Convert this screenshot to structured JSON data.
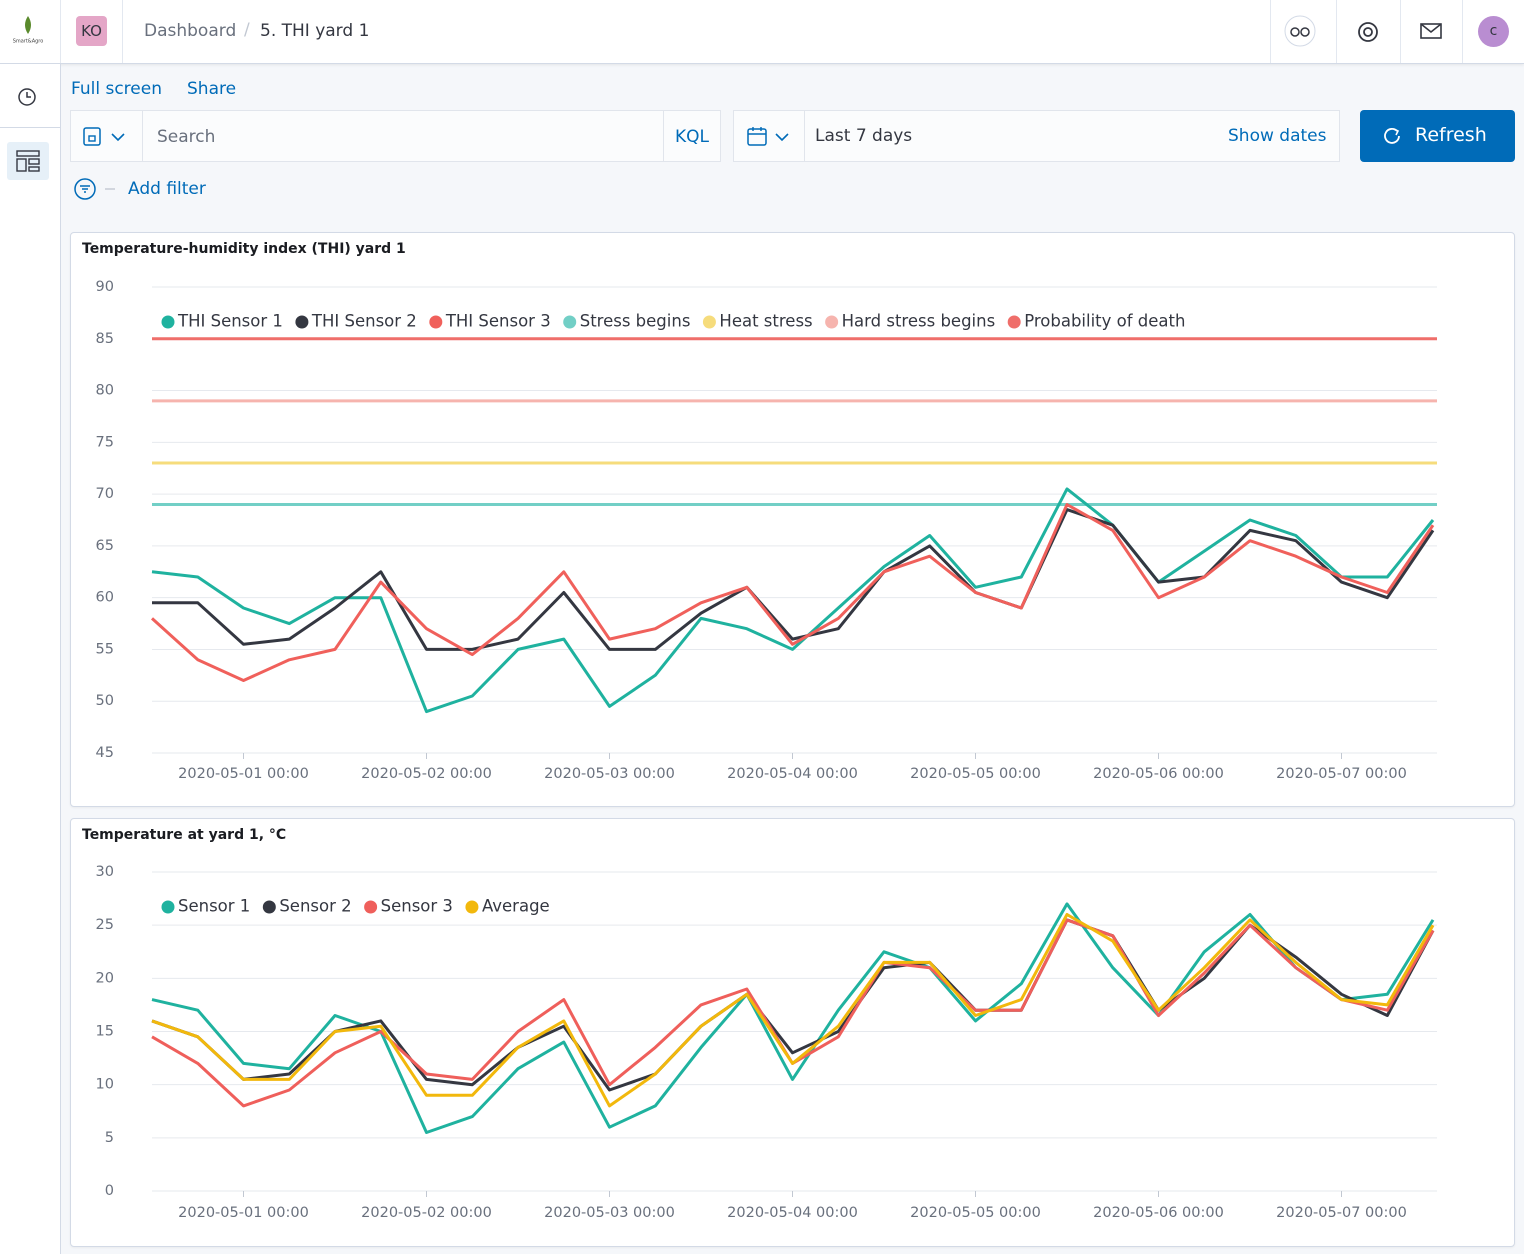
{
  "header": {
    "logo": "Smart&Agro",
    "space": "KO",
    "breadcrumbs": [
      "Dashboard",
      "5. THI yard 1"
    ],
    "user": "c"
  },
  "toolbar": {
    "links": [
      "Full screen",
      "Share"
    ],
    "search": "Search",
    "language": "KQL",
    "time": "Last 7 days",
    "show_dates": "Show dates",
    "refresh": "Refresh",
    "add_filter": "Add filter"
  },
  "chart_data": [
    {
      "type": "line",
      "title": "Temperature-humidity index (THI) yard 1",
      "x": [
        "2020-04-30 12:00",
        "2020-04-30 18:00",
        "2020-05-01 00:00",
        "2020-05-01 06:00",
        "2020-05-01 12:00",
        "2020-05-01 18:00",
        "2020-05-02 00:00",
        "2020-05-02 06:00",
        "2020-05-02 12:00",
        "2020-05-02 18:00",
        "2020-05-03 00:00",
        "2020-05-03 06:00",
        "2020-05-03 12:00",
        "2020-05-03 18:00",
        "2020-05-04 00:00",
        "2020-05-04 06:00",
        "2020-05-04 12:00",
        "2020-05-04 18:00",
        "2020-05-05 00:00",
        "2020-05-05 06:00",
        "2020-05-05 12:00",
        "2020-05-05 18:00",
        "2020-05-06 00:00",
        "2020-05-06 06:00",
        "2020-05-06 12:00",
        "2020-05-06 18:00",
        "2020-05-07 00:00",
        "2020-05-07 06:00",
        "2020-05-07 12:00"
      ],
      "series": [
        {
          "name": "THI Sensor 1",
          "color": "#1fb29f",
          "values": [
            62.5,
            62,
            59,
            57.5,
            60,
            60,
            49,
            50.5,
            55,
            56,
            49.5,
            52.5,
            58,
            57,
            55,
            59,
            63,
            66,
            61,
            62,
            70.5,
            67,
            61.5,
            64.5,
            67.5,
            66,
            62,
            62,
            67.5
          ]
        },
        {
          "name": "THI Sensor 2",
          "color": "#343741",
          "values": [
            59.5,
            59.5,
            55.5,
            56,
            59,
            62.5,
            55,
            55,
            56,
            60.5,
            55,
            55,
            58.5,
            61,
            56,
            57,
            62.5,
            65,
            60.5,
            59,
            68.5,
            67,
            61.5,
            62,
            66.5,
            65.5,
            61.5,
            60,
            66.5
          ]
        },
        {
          "name": "THI Sensor 3",
          "color": "#f0605b",
          "values": [
            58,
            54,
            52,
            54,
            55,
            61.5,
            57,
            54.5,
            58,
            62.5,
            56,
            57,
            59.5,
            61,
            55.5,
            58,
            62.5,
            64,
            60.5,
            59,
            69,
            66.5,
            60,
            62,
            65.5,
            64,
            62,
            60.5,
            67
          ]
        }
      ],
      "reference_lines": [
        {
          "name": "Stress begins",
          "color": "#72cfc6",
          "value": 69
        },
        {
          "name": "Heat stress",
          "color": "#f6dc7c",
          "value": 73
        },
        {
          "name": "Hard stress begins",
          "color": "#f6b4ae",
          "value": 79
        },
        {
          "name": "Probability of death",
          "color": "#ef6e6a",
          "value": 85
        }
      ],
      "xlim": [
        "2020-04-30 12:00",
        "2020-05-07 12:00"
      ],
      "xticks": [
        "2020-05-01 00:00",
        "2020-05-02 00:00",
        "2020-05-03 00:00",
        "2020-05-04 00:00",
        "2020-05-05 00:00",
        "2020-05-06 00:00",
        "2020-05-07 00:00"
      ],
      "ylim": [
        45,
        90
      ],
      "yticks": [
        45,
        50,
        55,
        60,
        65,
        70,
        75,
        80,
        85,
        90
      ],
      "grid": true,
      "legend": "top-left"
    },
    {
      "type": "line",
      "title": "Temperature at yard 1, °C",
      "x": [
        "2020-04-30 12:00",
        "2020-04-30 18:00",
        "2020-05-01 00:00",
        "2020-05-01 06:00",
        "2020-05-01 12:00",
        "2020-05-01 18:00",
        "2020-05-02 00:00",
        "2020-05-02 06:00",
        "2020-05-02 12:00",
        "2020-05-02 18:00",
        "2020-05-03 00:00",
        "2020-05-03 06:00",
        "2020-05-03 12:00",
        "2020-05-03 18:00",
        "2020-05-04 00:00",
        "2020-05-04 06:00",
        "2020-05-04 12:00",
        "2020-05-04 18:00",
        "2020-05-05 00:00",
        "2020-05-05 06:00",
        "2020-05-05 12:00",
        "2020-05-05 18:00",
        "2020-05-06 00:00",
        "2020-05-06 06:00",
        "2020-05-06 12:00",
        "2020-05-06 18:00",
        "2020-05-07 00:00",
        "2020-05-07 06:00",
        "2020-05-07 12:00"
      ],
      "series": [
        {
          "name": "Sensor 1",
          "color": "#1fb29f",
          "values": [
            18,
            17,
            12,
            11.5,
            16.5,
            15,
            5.5,
            7,
            11.5,
            14,
            6,
            8,
            13.5,
            18.5,
            10.5,
            17,
            22.5,
            21,
            16,
            19.5,
            27,
            21,
            16.5,
            22.5,
            26,
            21,
            18,
            18.5,
            25.5
          ]
        },
        {
          "name": "Sensor 2",
          "color": "#343741",
          "values": [
            16,
            14.5,
            10.5,
            11,
            15,
            16,
            10.5,
            10,
            13.5,
            15.5,
            9.5,
            11,
            15.5,
            18.5,
            13,
            15,
            21,
            21.5,
            17,
            17,
            25.5,
            24,
            17,
            20,
            25,
            22,
            18.5,
            16.5,
            24.5
          ]
        },
        {
          "name": "Sensor 3",
          "color": "#ef5f5b",
          "values": [
            14.5,
            12,
            8,
            9.5,
            13,
            15,
            11,
            10.5,
            15,
            18,
            10,
            13.5,
            17.5,
            19,
            12,
            14.5,
            21.5,
            21,
            17,
            17,
            25.5,
            24,
            16.5,
            20.5,
            25,
            21,
            18,
            17,
            24.5
          ]
        },
        {
          "name": "Average",
          "color": "#f2b80c",
          "values": [
            16,
            14.5,
            10.5,
            10.5,
            15,
            15.5,
            9,
            9,
            13.5,
            16,
            8,
            11,
            15.5,
            18.5,
            12,
            15.5,
            21.5,
            21.5,
            16.5,
            18,
            26,
            23.5,
            17,
            21,
            25.5,
            21.5,
            18,
            17.5,
            25
          ]
        }
      ],
      "xlim": [
        "2020-04-30 12:00",
        "2020-05-07 12:00"
      ],
      "xticks": [
        "2020-05-01 00:00",
        "2020-05-02 00:00",
        "2020-05-03 00:00",
        "2020-05-04 00:00",
        "2020-05-05 00:00",
        "2020-05-06 00:00",
        "2020-05-07 00:00"
      ],
      "ylim": [
        0,
        30
      ],
      "yticks": [
        0,
        5,
        10,
        15,
        20,
        25,
        30
      ],
      "grid": true,
      "legend": "top-left"
    }
  ]
}
